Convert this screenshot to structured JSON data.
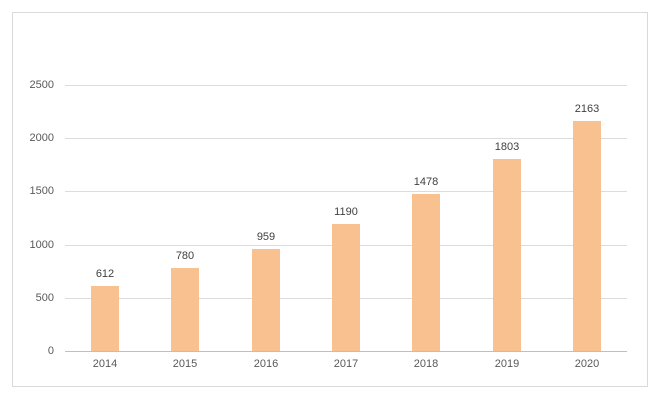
{
  "chart_data": {
    "type": "bar",
    "title": "",
    "xlabel": "",
    "ylabel": "",
    "categories": [
      "2014",
      "2015",
      "2016",
      "2017",
      "2018",
      "2019",
      "2020"
    ],
    "values": [
      612,
      780,
      959,
      1190,
      1478,
      1803,
      2163
    ],
    "data_labels": [
      "612",
      "780",
      "959",
      "1190",
      "1478",
      "1803",
      "2163"
    ],
    "ylim": [
      0,
      2500
    ],
    "yticks": [
      0,
      500,
      1000,
      1500,
      2000,
      2500
    ],
    "grid": true,
    "legend_position": "none",
    "colors": {
      "bar_fill": "#f9c18f",
      "gridline": "#dcdcdc",
      "axis_line": "#bfbfbf",
      "tick_text": "#595959",
      "data_label_text": "#404040",
      "frame_border": "#d9d9d9",
      "background": "#ffffff"
    }
  }
}
